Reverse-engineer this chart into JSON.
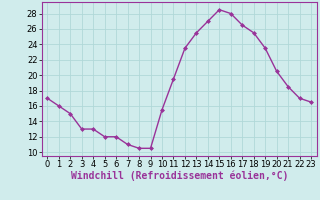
{
  "x": [
    0,
    1,
    2,
    3,
    4,
    5,
    6,
    7,
    8,
    9,
    10,
    11,
    12,
    13,
    14,
    15,
    16,
    17,
    18,
    19,
    20,
    21,
    22,
    23
  ],
  "y": [
    17,
    16,
    15,
    13,
    13,
    12,
    12,
    11,
    10.5,
    10.5,
    15.5,
    19.5,
    23.5,
    25.5,
    27,
    28.5,
    28,
    26.5,
    25.5,
    23.5,
    20.5,
    18.5,
    17,
    16.5
  ],
  "line_color": "#993399",
  "marker": "D",
  "marker_size": 2,
  "line_width": 1.0,
  "xlabel": "Windchill (Refroidissement éolien,°C)",
  "xlabel_fontsize": 7,
  "xlim": [
    -0.5,
    23.5
  ],
  "ylim": [
    9.5,
    29.5
  ],
  "yticks": [
    10,
    12,
    14,
    16,
    18,
    20,
    22,
    24,
    26,
    28
  ],
  "xticks": [
    0,
    1,
    2,
    3,
    4,
    5,
    6,
    7,
    8,
    9,
    10,
    11,
    12,
    13,
    14,
    15,
    16,
    17,
    18,
    19,
    20,
    21,
    22,
    23
  ],
  "bg_color": "#d0ecec",
  "grid_color": "#b0d8d8",
  "tick_label_fontsize": 6,
  "xlabel_color": "#993399",
  "spine_color": "#993399"
}
